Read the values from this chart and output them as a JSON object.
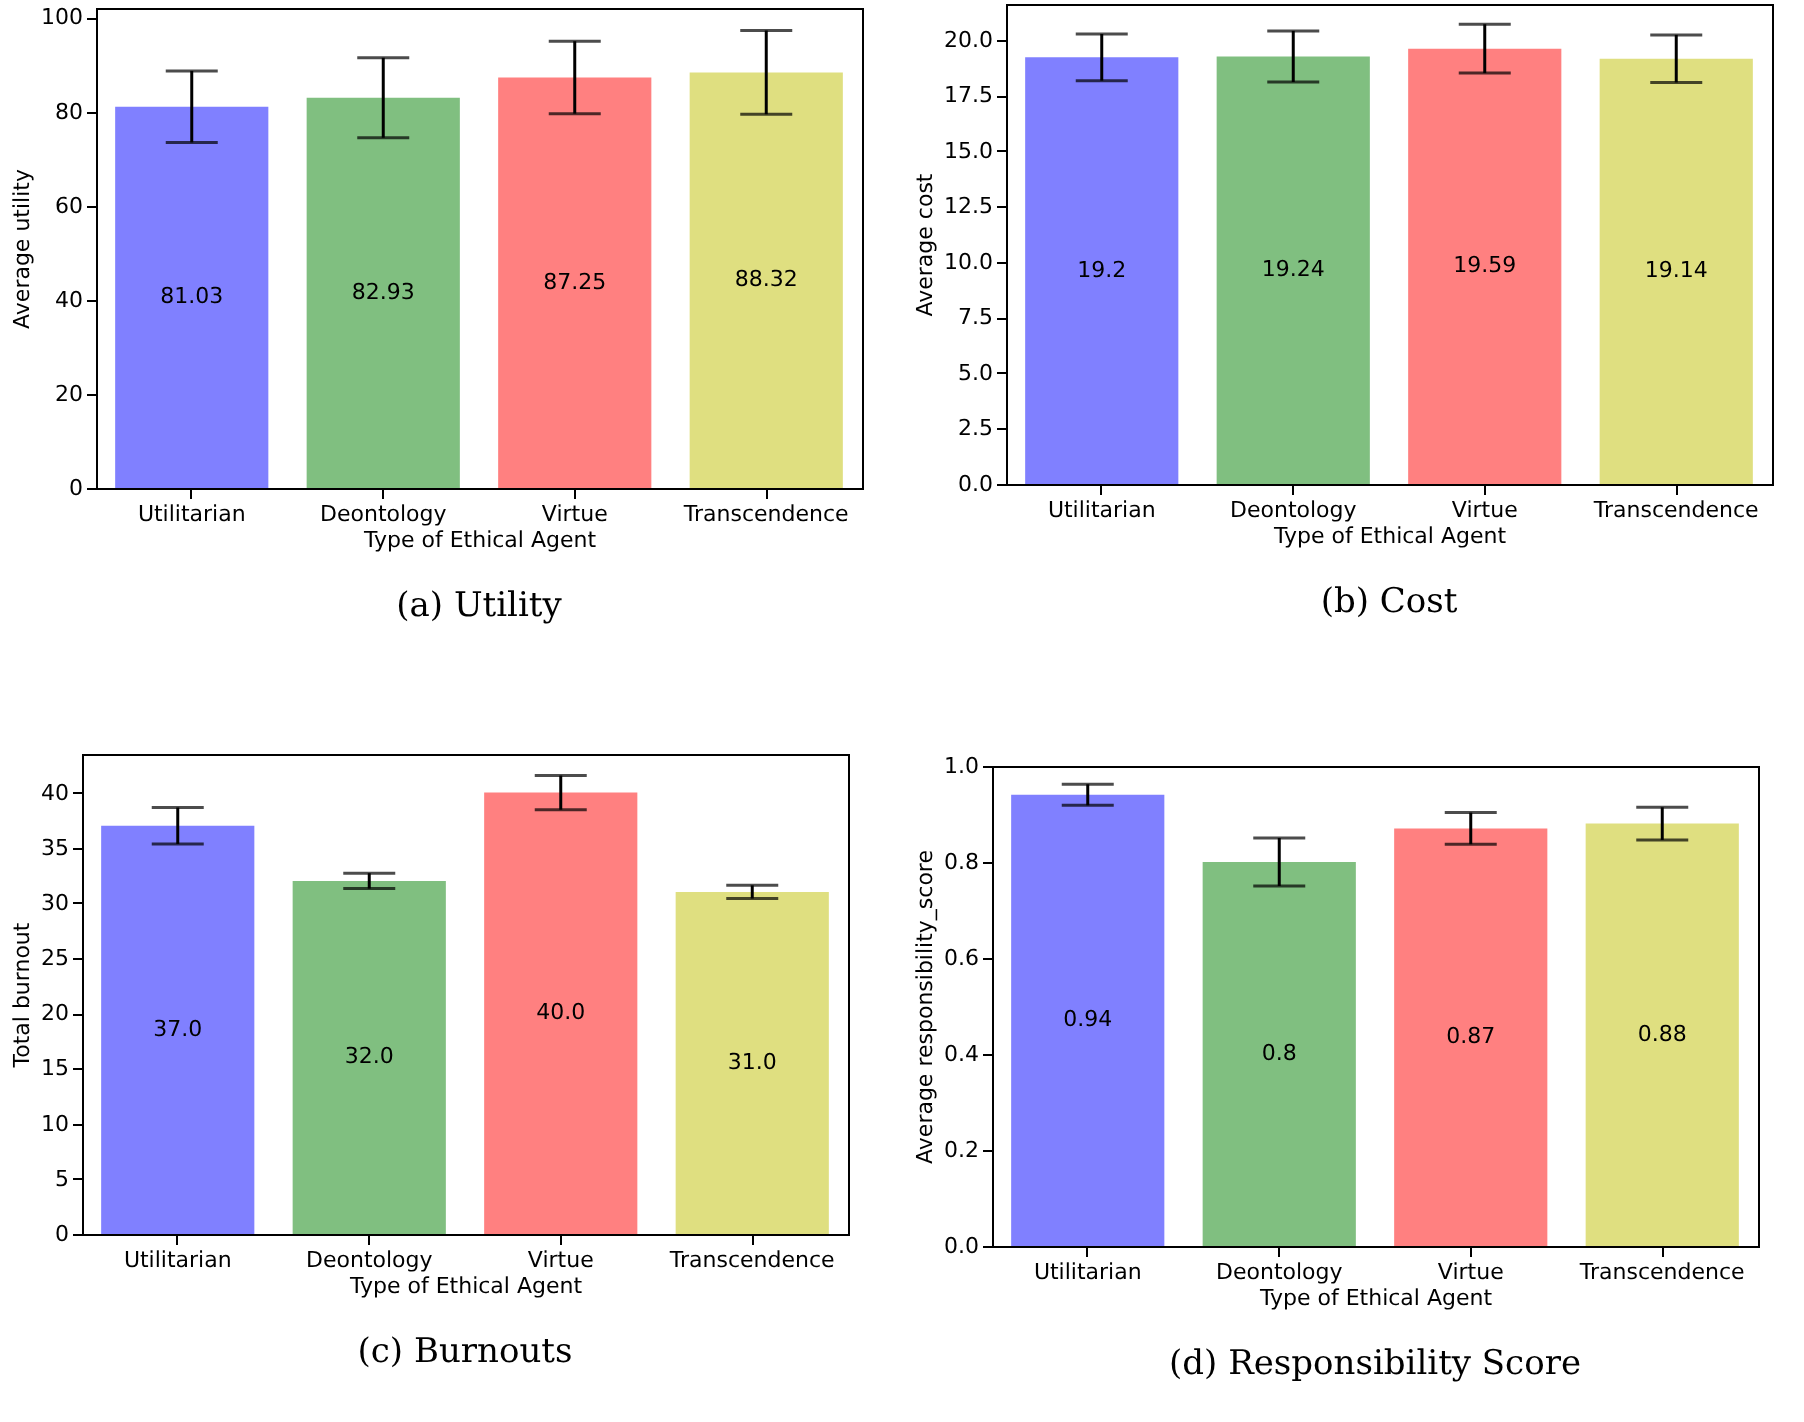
{
  "chart_data": [
    {
      "type": "bar",
      "title": "(a) Utility",
      "xlabel": "Type of Ethical Agent",
      "ylabel": "Average utility",
      "categories": [
        "Utilitarian",
        "Deontology",
        "Virtue",
        "Transcendence"
      ],
      "values": [
        81.03,
        82.93,
        87.25,
        88.32
      ],
      "colors": [
        "#8080ff",
        "#80bf80",
        "#ff8080",
        "#dfdf80"
      ],
      "errors": [
        7.6,
        8.5,
        7.7,
        8.9
      ],
      "ylim": [
        0,
        102
      ],
      "yticks": [
        0,
        20,
        40,
        60,
        80,
        100
      ],
      "data_labels": true,
      "grid": false
    },
    {
      "type": "bar",
      "title": "(b) Cost",
      "xlabel": "Type of Ethical Agent",
      "ylabel": "Average cost",
      "categories": [
        "Utilitarian",
        "Deontology",
        "Virtue",
        "Transcendence"
      ],
      "values": [
        19.2,
        19.24,
        19.59,
        19.14
      ],
      "colors": [
        "#8080ff",
        "#80bf80",
        "#ff8080",
        "#dfdf80"
      ],
      "errors": [
        1.05,
        1.15,
        1.1,
        1.07
      ],
      "ylim": [
        0,
        21.6
      ],
      "yticks": [
        {
          "value": 0,
          "label": "0.0"
        },
        2.5,
        {
          "value": 5,
          "label": "5.0"
        },
        7.5,
        {
          "value": 10,
          "label": "10.0"
        },
        12.5,
        {
          "value": 15,
          "label": "15.0"
        },
        17.5,
        {
          "value": 20,
          "label": "20.0"
        }
      ],
      "data_labels": true,
      "grid": false
    },
    {
      "type": "bar",
      "title": "(c) Burnouts",
      "xlabel": "Type of Ethical Agent",
      "ylabel": "Total burnout",
      "categories": [
        "Utilitarian",
        "Deontology",
        "Virtue",
        "Transcendence"
      ],
      "values": [
        37,
        32,
        40,
        31
      ],
      "value_labels": [
        "37.0",
        "32.0",
        "40.0",
        "31.0"
      ],
      "colors": [
        "#8080ff",
        "#80bf80",
        "#ff8080",
        "#dfdf80"
      ],
      "errors": [
        1.65,
        0.7,
        1.55,
        0.6
      ],
      "ylim": [
        0,
        43.5
      ],
      "yticks": [
        0,
        5,
        10,
        15,
        20,
        25,
        30,
        35,
        40
      ],
      "grid": false
    },
    {
      "type": "bar",
      "title": "(d) Responsibility Score",
      "xlabel": "Type of Ethical Agent",
      "ylabel": "Average responsibility_score",
      "categories": [
        "Utilitarian",
        "Deontology",
        "Virtue",
        "Transcendence"
      ],
      "values": [
        0.94,
        0.8,
        0.87,
        0.88
      ],
      "colors": [
        "#8080ff",
        "#80bf80",
        "#ff8080",
        "#dfdf80"
      ],
      "errors": [
        0.022,
        0.05,
        0.033,
        0.034
      ],
      "ylim": [
        0,
        1.0
      ],
      "yticks": [
        {
          "value": 0,
          "label": "0.0"
        },
        0.2,
        0.4,
        0.6,
        0.8,
        {
          "value": 1,
          "label": "1.0"
        }
      ],
      "data_labels": true,
      "grid": false
    }
  ]
}
